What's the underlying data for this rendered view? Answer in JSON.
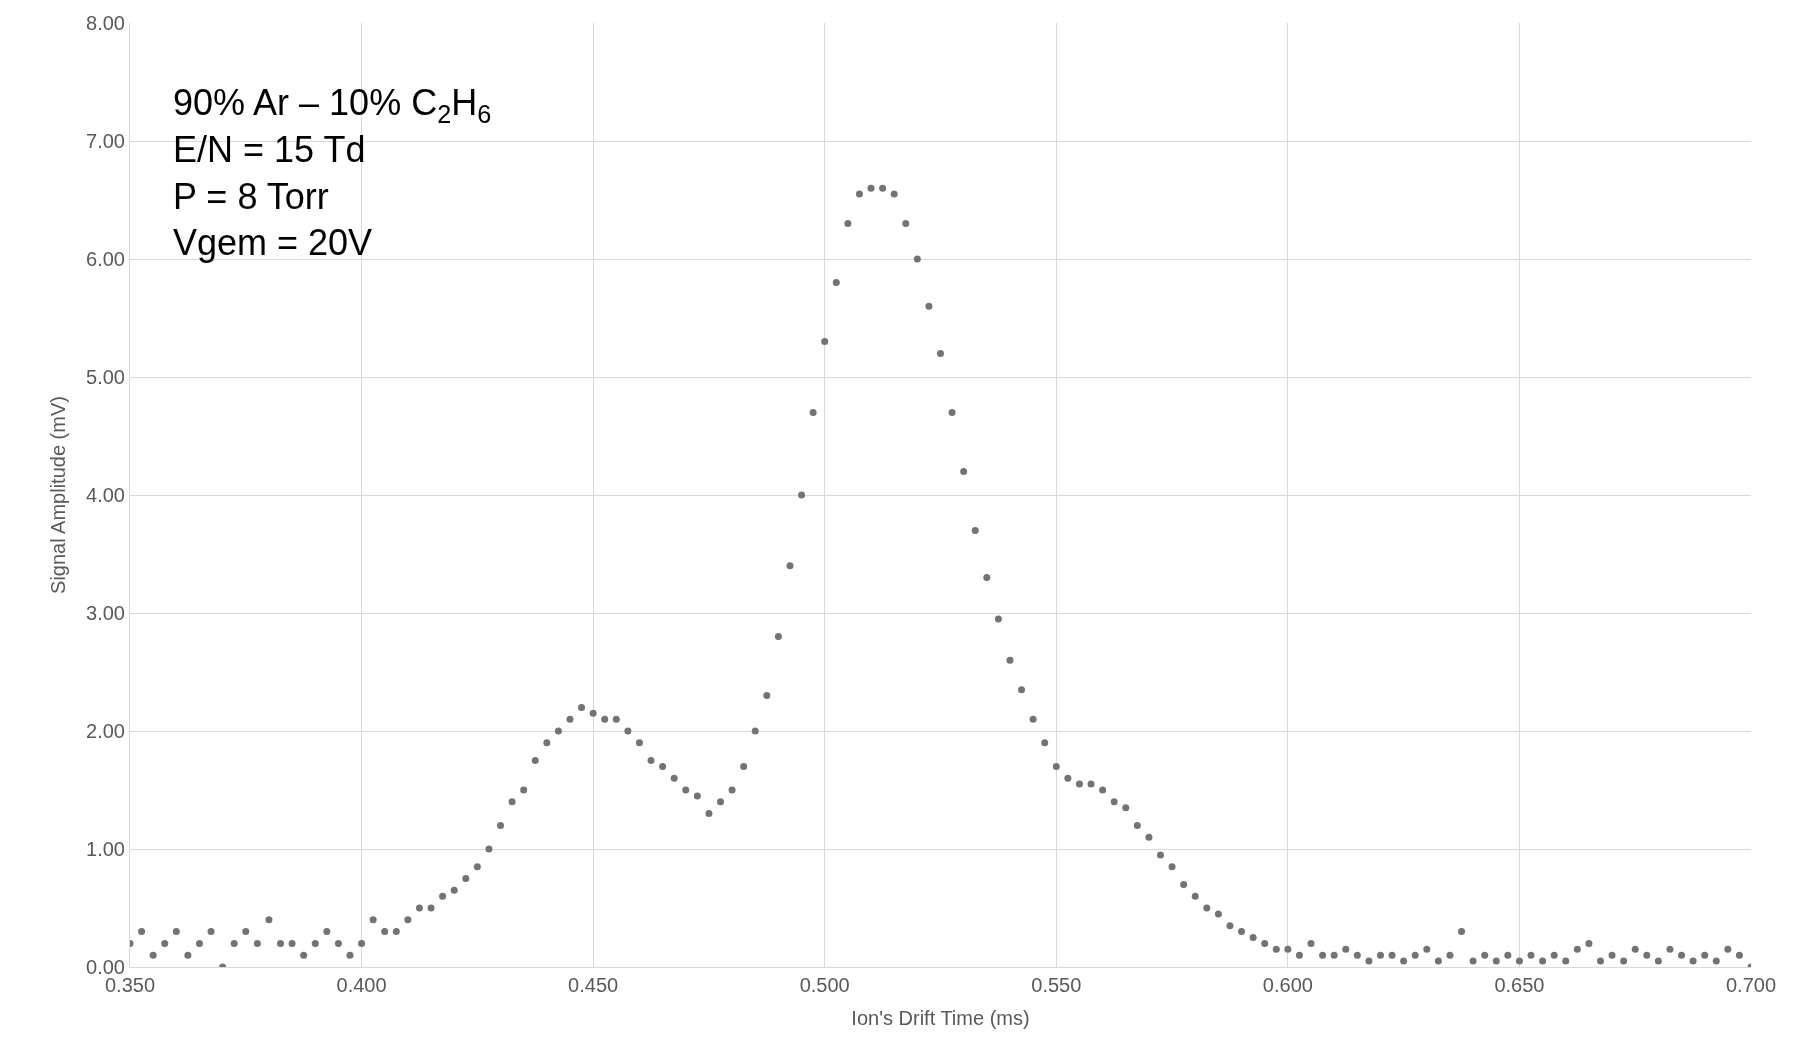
{
  "chart_data": {
    "type": "scatter",
    "xlabel": "Ion's Drift Time (ms)",
    "ylabel": "Signal Amplitude (mV)",
    "annotations": [
      "90% Ar – 10% C$_{2}$H$_{6}$\nE/N = 15 Td\nP = 8 Torr\nVgem = 20V"
    ],
    "x": [
      0.35,
      0.3525,
      0.355,
      0.3575,
      0.36,
      0.3625,
      0.365,
      0.3675,
      0.37,
      0.3725,
      0.375,
      0.3775,
      0.38,
      0.3825,
      0.385,
      0.3875,
      0.39,
      0.3925,
      0.395,
      0.3975,
      0.4,
      0.4025,
      0.405,
      0.4075,
      0.41,
      0.4125,
      0.415,
      0.4175,
      0.42,
      0.4225,
      0.425,
      0.4275,
      0.43,
      0.4325,
      0.435,
      0.4375,
      0.44,
      0.4425,
      0.445,
      0.4475,
      0.45,
      0.4525,
      0.455,
      0.4575,
      0.46,
      0.4625,
      0.465,
      0.4675,
      0.47,
      0.4725,
      0.475,
      0.4775,
      0.48,
      0.4825,
      0.485,
      0.4875,
      0.49,
      0.4925,
      0.495,
      0.4975,
      0.5,
      0.5025,
      0.505,
      0.5075,
      0.51,
      0.5125,
      0.515,
      0.5175,
      0.52,
      0.5225,
      0.525,
      0.5275,
      0.53,
      0.5325,
      0.535,
      0.5375,
      0.54,
      0.5425,
      0.545,
      0.5475,
      0.55,
      0.5525,
      0.555,
      0.5575,
      0.56,
      0.5625,
      0.565,
      0.5675,
      0.57,
      0.5725,
      0.575,
      0.5775,
      0.58,
      0.5825,
      0.585,
      0.5875,
      0.59,
      0.5925,
      0.595,
      0.5975,
      0.6,
      0.6025,
      0.605,
      0.6075,
      0.61,
      0.6125,
      0.615,
      0.6175,
      0.62,
      0.6225,
      0.625,
      0.6275,
      0.63,
      0.6325,
      0.635,
      0.6375,
      0.64,
      0.6425,
      0.645,
      0.6475,
      0.65,
      0.6525,
      0.655,
      0.6575,
      0.66,
      0.6625,
      0.665,
      0.6675,
      0.67,
      0.6725,
      0.675,
      0.6775,
      0.68,
      0.6825,
      0.685,
      0.6875,
      0.69,
      0.6925,
      0.695,
      0.6975,
      0.7
    ],
    "series": [
      {
        "color": "#737373",
        "values": [
          0.2,
          0.3,
          0.1,
          0.2,
          0.3,
          0.1,
          0.2,
          0.3,
          0.0,
          0.2,
          0.3,
          0.2,
          0.4,
          0.2,
          0.2,
          0.1,
          0.2,
          0.3,
          0.2,
          0.1,
          0.2,
          0.4,
          0.3,
          0.3,
          0.4,
          0.5,
          0.5,
          0.6,
          0.65,
          0.75,
          0.85,
          1.0,
          1.2,
          1.4,
          1.5,
          1.75,
          1.9,
          2.0,
          2.1,
          2.2,
          2.15,
          2.1,
          2.1,
          2.0,
          1.9,
          1.75,
          1.7,
          1.6,
          1.5,
          1.45,
          1.3,
          1.4,
          1.5,
          1.7,
          2.0,
          2.3,
          2.8,
          3.4,
          4.0,
          4.7,
          5.3,
          5.8,
          6.3,
          6.55,
          6.6,
          6.6,
          6.55,
          6.3,
          6.0,
          5.6,
          5.2,
          4.7,
          4.2,
          3.7,
          3.3,
          2.95,
          2.6,
          2.35,
          2.1,
          1.9,
          1.7,
          1.6,
          1.55,
          1.55,
          1.5,
          1.4,
          1.35,
          1.2,
          1.1,
          0.95,
          0.85,
          0.7,
          0.6,
          0.5,
          0.45,
          0.35,
          0.3,
          0.25,
          0.2,
          0.15,
          0.15,
          0.1,
          0.2,
          0.1,
          0.1,
          0.15,
          0.1,
          0.05,
          0.1,
          0.1,
          0.05,
          0.1,
          0.15,
          0.05,
          0.1,
          0.3,
          0.05,
          0.1,
          0.05,
          0.1,
          0.05,
          0.1,
          0.05,
          0.1,
          0.05,
          0.15,
          0.2,
          0.05,
          0.1,
          0.05,
          0.15,
          0.1,
          0.05,
          0.15,
          0.1,
          0.05,
          0.1,
          0.05,
          0.15,
          0.1,
          0.0
        ]
      }
    ],
    "xlim": [
      0.35,
      0.7
    ],
    "xticks": [
      {
        "value": 0.35,
        "label": "0.350"
      },
      {
        "value": 0.4,
        "label": "0.400"
      },
      {
        "value": 0.45,
        "label": "0.450"
      },
      {
        "value": 0.5,
        "label": "0.500"
      },
      {
        "value": 0.55,
        "label": "0.550"
      },
      {
        "value": 0.6,
        "label": "0.600"
      },
      {
        "value": 0.65,
        "label": "0.650"
      },
      {
        "value": 0.7,
        "label": "0.700"
      }
    ],
    "ylim": [
      0,
      8
    ],
    "yticks": [
      {
        "value": 0,
        "label": "0.00"
      },
      {
        "value": 1,
        "label": "1.00"
      },
      {
        "value": 2,
        "label": "2.00"
      },
      {
        "value": 3,
        "label": "3.00"
      },
      {
        "value": 4,
        "label": "4.00"
      },
      {
        "value": 5,
        "label": "5.00"
      },
      {
        "value": 6,
        "label": "6.00"
      },
      {
        "value": 7,
        "label": "7.00"
      },
      {
        "value": 8,
        "label": "8.00"
      }
    ],
    "grid": true,
    "marker": "circle"
  }
}
